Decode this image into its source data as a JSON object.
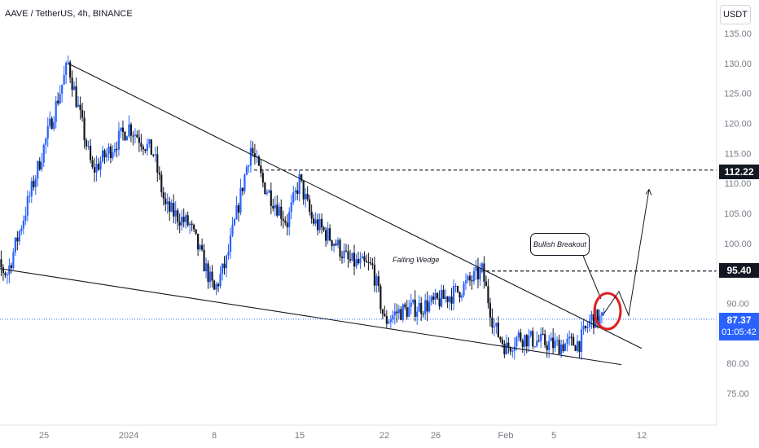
{
  "header": {
    "title": "AAVE / TetherUS, 4h, BINANCE",
    "currency_label": "USDT"
  },
  "colors": {
    "up": "#2962ff",
    "down": "#131722",
    "accent": "#2962ff",
    "marker": "#e02020",
    "grid": "#f0f3fa"
  },
  "y_axis_ticks": [
    "135.00",
    "130.00",
    "125.00",
    "120.00",
    "115.00",
    "110.00",
    "105.00",
    "100.00",
    "95.00",
    "90.00",
    "85.00",
    "80.00",
    "75.00"
  ],
  "x_axis_ticks": [
    "25",
    "2024",
    "8",
    "15",
    "22",
    "26",
    "Feb",
    "5",
    "12"
  ],
  "badges": {
    "level_high": "112.22",
    "level_mid": "95.40",
    "last_price": "87.37",
    "countdown": "01:05:42"
  },
  "annotations": {
    "pattern": "Falling Wedge",
    "callout": "Bullish Breakout"
  },
  "chart_data": {
    "type": "candlestick",
    "title": "AAVE / TetherUS, 4h, BINANCE",
    "ylim": [
      72,
      137
    ],
    "y_ticks": [
      135,
      130,
      125,
      120,
      115,
      110,
      105,
      100,
      95,
      90,
      85,
      80,
      75
    ],
    "x_ticks": [
      "25",
      "2024",
      "8",
      "15",
      "22",
      "26",
      "Feb",
      "5",
      "12"
    ],
    "grid": false,
    "horizontal_levels": [
      112.22,
      95.4
    ],
    "last_price": 87.37,
    "countdown": "01:05:42",
    "price_path_key_points": [
      [
        "Dec 20",
        98.0
      ],
      [
        "Dec 22",
        95.0
      ],
      [
        "Dec 27",
        130.0
      ],
      [
        "Dec 29",
        112.0
      ],
      [
        "Jan 1",
        119.5
      ],
      [
        "Jan 3",
        115.0
      ],
      [
        "Jan 4",
        106.0
      ],
      [
        "Jan 6",
        103.0
      ],
      [
        "Jan 8",
        92.0
      ],
      [
        "Jan 9",
        97.0
      ],
      [
        "Jan 11",
        116.0
      ],
      [
        "Jan 12",
        110.0
      ],
      [
        "Jan 14",
        103.5
      ],
      [
        "Jan 15",
        110.5
      ],
      [
        "Jan 16",
        104.0
      ],
      [
        "Jan 18",
        100.0
      ],
      [
        "Jan 19",
        97.0
      ],
      [
        "Jan 21",
        96.0
      ],
      [
        "Jan 22",
        87.0
      ],
      [
        "Jan 23",
        88.5
      ],
      [
        "Jan 26",
        90.0
      ],
      [
        "Jan 28",
        92.0
      ],
      [
        "Jan 30",
        95.4
      ],
      [
        "Jan 31",
        86.0
      ],
      [
        "Feb 1",
        82.5
      ],
      [
        "Feb 2",
        84.5
      ],
      [
        "Feb 5",
        83.0
      ],
      [
        "Feb 7",
        83.5
      ],
      [
        "Feb 8",
        87.5
      ],
      [
        "Feb 9",
        87.37
      ]
    ],
    "wedge_upper": [
      [
        "Dec 27",
        130.0
      ],
      [
        "Feb 11",
        82.5
      ]
    ],
    "wedge_lower": [
      [
        "Dec 18",
        95.8
      ],
      [
        "Feb 11",
        79.8
      ]
    ],
    "projection": [
      [
        88.0
      ],
      [
        92.0
      ],
      [
        88.0
      ],
      [
        109.0
      ]
    ]
  }
}
